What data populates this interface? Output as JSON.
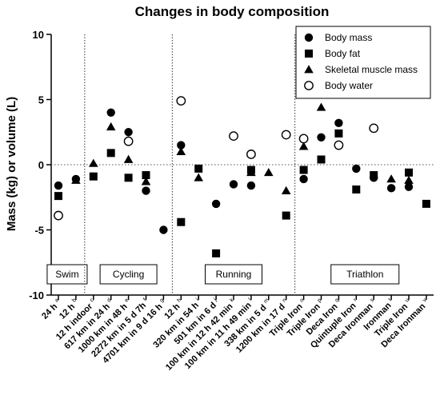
{
  "chart_data": {
    "type": "scatter",
    "title": "Changes in body composition",
    "ylabel": "Mass (kg) or volume (L)",
    "xlabel": "",
    "ylim": [
      -10,
      10
    ],
    "yticks": [
      -10,
      -5,
      0,
      5,
      10
    ],
    "zero_line": "dotted",
    "legend_position": "top-right",
    "categories": [
      {
        "label": "24 h",
        "sup": "a"
      },
      {
        "label": "12 h",
        "sup": "b"
      },
      {
        "label": "12 h indoor",
        "sup": "c"
      },
      {
        "label": "617 km in 24 h",
        "sup": "d"
      },
      {
        "label": "1000 km in 48 h",
        "sup": "e"
      },
      {
        "label": "2272 km in 5 d 7h",
        "sup": "f"
      },
      {
        "label": "4701 km in 9 d 16 h",
        "sup": "g"
      },
      {
        "label": "12 h",
        "sup": "h"
      },
      {
        "label": "320 km in 54 h",
        "sup": "i"
      },
      {
        "label": "501 km in 6 d",
        "sup": "j"
      },
      {
        "label": "100 km in 12 h 42 min",
        "sup": "k"
      },
      {
        "label": "100 km in 11 h 49 min",
        "sup": "l"
      },
      {
        "label": "338 km in 5 d",
        "sup": "m"
      },
      {
        "label": "1200 km in 17 d",
        "sup": "n"
      },
      {
        "label": "Triple Iron",
        "sup": "o"
      },
      {
        "label": "Triple Iron",
        "sup": "p"
      },
      {
        "label": "Deca Iron",
        "sup": "q"
      },
      {
        "label": "Quintuple Iron",
        "sup": "r"
      },
      {
        "label": "Deca Ironman",
        "sup": "s"
      },
      {
        "label": "Ironman",
        "sup": "t"
      },
      {
        "label": "Triple Iron",
        "sup": "u"
      },
      {
        "label": "Deca Ironman",
        "sup": "v"
      }
    ],
    "sections": [
      {
        "label": "Swim",
        "start": 0,
        "end": 1
      },
      {
        "label": "Cycling",
        "start": 2,
        "end": 6
      },
      {
        "label": "Running",
        "start": 7,
        "end": 13
      },
      {
        "label": "Triathlon",
        "start": 14,
        "end": 21
      }
    ],
    "series": [
      {
        "name": "Body mass",
        "marker": "circle-filled",
        "values": [
          -1.6,
          -1.1,
          null,
          4.0,
          2.5,
          -2.0,
          -5.0,
          1.5,
          null,
          -3.0,
          -1.5,
          -1.6,
          null,
          null,
          -1.1,
          2.1,
          3.2,
          -0.3,
          -1.0,
          -1.8,
          -1.7,
          null
        ]
      },
      {
        "name": "Body fat",
        "marker": "square-filled",
        "values": [
          -2.4,
          null,
          -0.9,
          0.9,
          -1.0,
          -0.8,
          null,
          -4.4,
          -0.3,
          -6.8,
          null,
          -0.4,
          null,
          -3.9,
          -0.4,
          0.4,
          2.4,
          -1.9,
          -0.8,
          null,
          -0.6,
          -3.0
        ]
      },
      {
        "name": "Skeletal muscle mass",
        "marker": "triangle-filled",
        "values": [
          null,
          -1.2,
          0.1,
          2.9,
          0.4,
          -1.3,
          null,
          1.0,
          -1.0,
          null,
          null,
          -0.6,
          -0.6,
          -2.0,
          1.4,
          4.4,
          null,
          null,
          null,
          -1.1,
          -1.2,
          null
        ]
      },
      {
        "name": "Body water",
        "marker": "circle-open",
        "values": [
          -3.9,
          null,
          null,
          null,
          1.8,
          null,
          null,
          4.9,
          null,
          null,
          2.2,
          0.8,
          null,
          2.3,
          2.0,
          null,
          1.5,
          null,
          2.8,
          null,
          null,
          null
        ]
      }
    ]
  }
}
